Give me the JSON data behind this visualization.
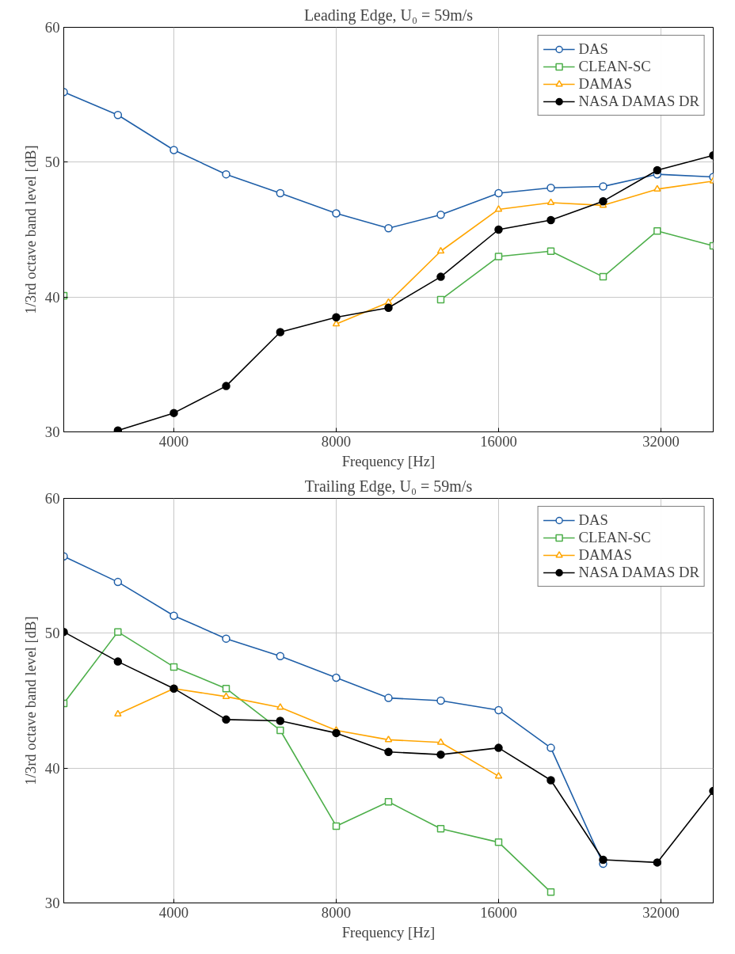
{
  "chart_data": [
    {
      "type": "line",
      "title": "Leading Edge, U₀ = 59m/s",
      "xlabel": "Frequency [Hz]",
      "ylabel": "1/3rd octave band level [dB]",
      "log": "x",
      "grid": true,
      "legend": "top right",
      "line_style": "solid",
      "x": [
        2500,
        3150,
        4000,
        5000,
        6300,
        8000,
        10000,
        12500,
        16000,
        20000,
        25000,
        31500,
        40000
      ],
      "xlim": [
        2500,
        40000
      ],
      "xticks": [
        4000,
        8000,
        16000,
        32000
      ],
      "ylim": [
        30,
        60
      ],
      "yticks": [
        30,
        40,
        50,
        60
      ],
      "series": [
        {
          "name": "DAS",
          "color": "#1f5fa8",
          "marker": "circle",
          "values": [
            55.2,
            53.5,
            50.9,
            49.1,
            47.7,
            46.2,
            45.1,
            46.1,
            47.7,
            48.1,
            48.2,
            49.1,
            48.9
          ]
        },
        {
          "name": "CLEAN-SC",
          "color": "#4daf4a",
          "marker": "square",
          "values": [
            40.1,
            null,
            null,
            null,
            null,
            null,
            null,
            39.8,
            43.0,
            43.4,
            41.5,
            44.9,
            43.8
          ]
        },
        {
          "name": "DAMAS",
          "color": "#ffa500",
          "marker": "triangle",
          "values": [
            null,
            null,
            null,
            null,
            null,
            38.0,
            39.6,
            43.4,
            46.5,
            47.0,
            46.8,
            48.0,
            48.6
          ]
        },
        {
          "name": "NASA DAMAS DR",
          "color": "#000000",
          "marker": "circle",
          "values": [
            null,
            30.1,
            31.4,
            33.4,
            37.4,
            38.5,
            39.2,
            41.5,
            45.0,
            45.7,
            47.1,
            49.4,
            50.5
          ]
        }
      ]
    },
    {
      "type": "line",
      "title": "Trailing Edge, U₀ = 59m/s",
      "xlabel": "Frequency [Hz]",
      "ylabel": "1/3rd octave band level [dB]",
      "log": "x",
      "grid": true,
      "legend": "top right",
      "line_style": "solid",
      "x": [
        2500,
        3150,
        4000,
        5000,
        6300,
        8000,
        10000,
        12500,
        16000,
        20000,
        25000,
        31500,
        40000
      ],
      "xlim": [
        2500,
        40000
      ],
      "xticks": [
        4000,
        8000,
        16000,
        32000
      ],
      "ylim": [
        30,
        60
      ],
      "yticks": [
        30,
        40,
        50,
        60
      ],
      "series": [
        {
          "name": "DAS",
          "color": "#1f5fa8",
          "marker": "circle",
          "values": [
            55.7,
            53.8,
            51.3,
            49.6,
            48.3,
            46.7,
            45.2,
            45.0,
            44.3,
            41.5,
            32.9,
            null,
            null
          ]
        },
        {
          "name": "CLEAN-SC",
          "color": "#4daf4a",
          "marker": "square",
          "values": [
            44.8,
            50.1,
            47.5,
            45.9,
            42.8,
            35.7,
            37.5,
            35.5,
            34.5,
            30.8,
            null,
            null,
            null
          ]
        },
        {
          "name": "DAMAS",
          "color": "#ffa500",
          "marker": "triangle",
          "values": [
            null,
            44.0,
            45.9,
            45.3,
            44.5,
            42.8,
            42.1,
            41.9,
            39.4,
            null,
            null,
            null,
            null
          ]
        },
        {
          "name": "NASA DAMAS DR",
          "color": "#000000",
          "marker": "circle",
          "values": [
            50.1,
            47.9,
            45.9,
            43.6,
            43.5,
            42.6,
            41.2,
            41.0,
            41.5,
            39.1,
            33.2,
            33.0,
            38.3
          ]
        }
      ]
    }
  ]
}
